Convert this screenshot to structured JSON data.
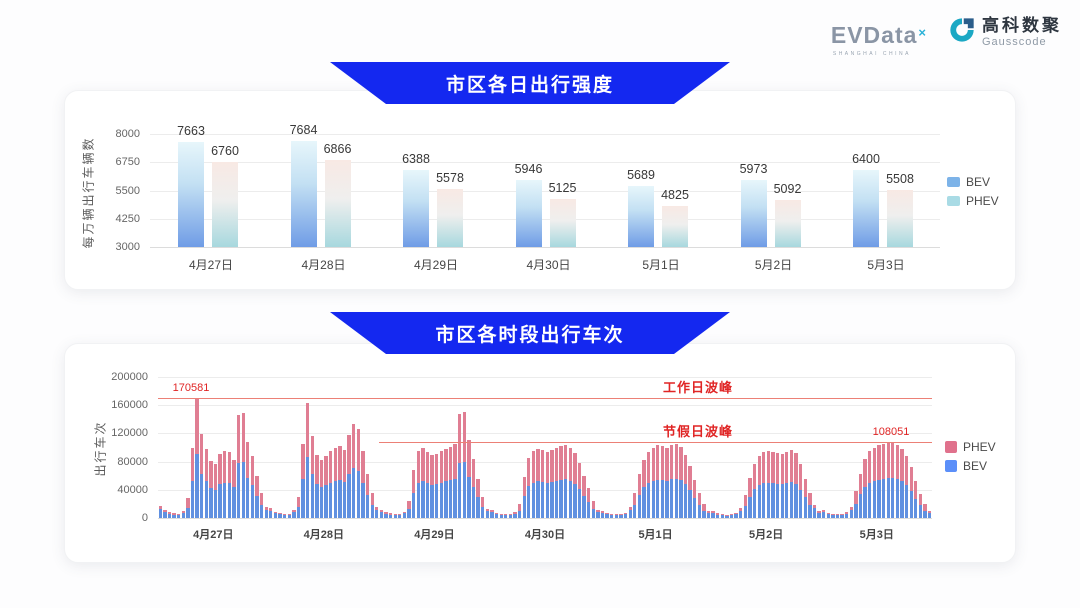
{
  "colors": {
    "accent_blue": "#1428f0",
    "annotation_red": "#e02525",
    "annotation_line": "#ec8076"
  },
  "header": {
    "evdata": {
      "text": "EVData",
      "superscript": "×",
      "subtext": "SHANGHAI CHINA"
    },
    "gausscode": {
      "cn": "高科数聚",
      "en": "Gausscode"
    }
  },
  "chart_data": [
    {
      "id": "daily-intensity",
      "type": "bar",
      "subtype": "grouped",
      "title": "市区各日出行强度",
      "ylabel": "每万辆出行车辆数",
      "ylim": [
        3000,
        8000
      ],
      "yticks": [
        3000,
        4250,
        5500,
        6750,
        8000
      ],
      "grid": true,
      "legend_position": "right",
      "categories": [
        "4月27日",
        "4月28日",
        "4月29日",
        "4月30日",
        "5月1日",
        "5月2日",
        "5月3日"
      ],
      "series": [
        {
          "name": "BEV",
          "values": [
            7663,
            7684,
            6388,
            5946,
            5689,
            5973,
            6400
          ]
        },
        {
          "name": "PHEV",
          "values": [
            6760,
            6866,
            5578,
            5125,
            4825,
            5092,
            5508
          ]
        }
      ],
      "legend": [
        {
          "label": "BEV",
          "color": "#7db3e8"
        },
        {
          "label": "PHEV",
          "color": "#a9dbe5"
        }
      ],
      "bar_gradients": {
        "BEV": [
          "#e7f6fb",
          "#6f9ce6"
        ],
        "PHEV": [
          "#f8e9e4",
          "#a7d8de"
        ]
      }
    },
    {
      "id": "hourly-trips",
      "type": "bar",
      "subtype": "stacked-hourly",
      "title": "市区各时段出行车次",
      "ylabel": "出行车次",
      "ylim": [
        0,
        200000
      ],
      "yticks": [
        0,
        40000,
        80000,
        120000,
        160000,
        200000
      ],
      "grid": true,
      "legend_position": "right",
      "hours_per_day": 24,
      "series_names": [
        "BEV",
        "PHEV"
      ],
      "bev_fraction": 0.53,
      "bev_fraction_small": 0.72,
      "small_bar_threshold": 20000,
      "categories": [
        "4月27日",
        "4月28日",
        "4月29日",
        "4月30日",
        "5月1日",
        "5月2日",
        "5月3日"
      ],
      "hourly_totals": {
        "4月27日": [
          17000,
          11000,
          8000,
          6500,
          6000,
          10000,
          28000,
          100000,
          170581,
          119000,
          98000,
          81000,
          76000,
          91000,
          95000,
          93000,
          82000,
          146000,
          149000,
          108000,
          88000,
          60000,
          35000,
          16000
        ],
        "4月28日": [
          14000,
          9000,
          7000,
          6000,
          6000,
          11000,
          30000,
          105000,
          163000,
          117000,
          90000,
          82000,
          88000,
          95000,
          100000,
          102000,
          96000,
          118000,
          133000,
          126000,
          95000,
          62000,
          36000,
          15000
        ],
        "4月29日": [
          12000,
          8000,
          6500,
          5500,
          6000,
          9000,
          24000,
          68000,
          95000,
          100000,
          94000,
          89000,
          91000,
          95000,
          98000,
          101000,
          105000,
          148000,
          150000,
          110000,
          84000,
          56000,
          30000,
          13000
        ],
        "4月30日": [
          11000,
          7500,
          6000,
          5500,
          5500,
          8500,
          20000,
          58000,
          85000,
          95000,
          98000,
          96000,
          94000,
          96000,
          99000,
          102000,
          104000,
          100000,
          92000,
          78000,
          60000,
          42000,
          24000,
          11000
        ],
        "5月1日": [
          10000,
          7000,
          5500,
          5000,
          5500,
          7500,
          15000,
          36000,
          62000,
          82000,
          94000,
          100000,
          103000,
          102000,
          100000,
          104000,
          105000,
          101000,
          90000,
          74000,
          54000,
          36000,
          20000,
          10000
        ],
        "5月2日": [
          10000,
          6500,
          5000,
          4500,
          5000,
          7000,
          14000,
          33000,
          57000,
          77000,
          88000,
          93000,
          95000,
          94000,
          92000,
          91000,
          94000,
          96000,
          92000,
          76000,
          55000,
          36000,
          19000,
          9500
        ],
        "5月3日": [
          11000,
          7000,
          5500,
          5000,
          5500,
          8000,
          16000,
          38000,
          63000,
          84000,
          95000,
          100000,
          103000,
          105000,
          106000,
          108051,
          104000,
          98000,
          88000,
          72000,
          52000,
          34000,
          20000,
          10000
        ]
      },
      "annotations": [
        {
          "label": "工作日波峰",
          "value": 170581,
          "value_label": "170581",
          "line_start_day": 0,
          "value_label_align": "left"
        },
        {
          "label": "节假日波峰",
          "value": 108051,
          "value_label": "108051",
          "line_start_day": 2,
          "value_label_align": "right"
        }
      ],
      "legend": [
        {
          "label": "PHEV",
          "color": "#e0718c"
        },
        {
          "label": "BEV",
          "color": "#5b8ff9"
        }
      ],
      "bar_colors": {
        "BEV": "#6090e0",
        "PHEV": "#e07e93"
      }
    }
  ]
}
